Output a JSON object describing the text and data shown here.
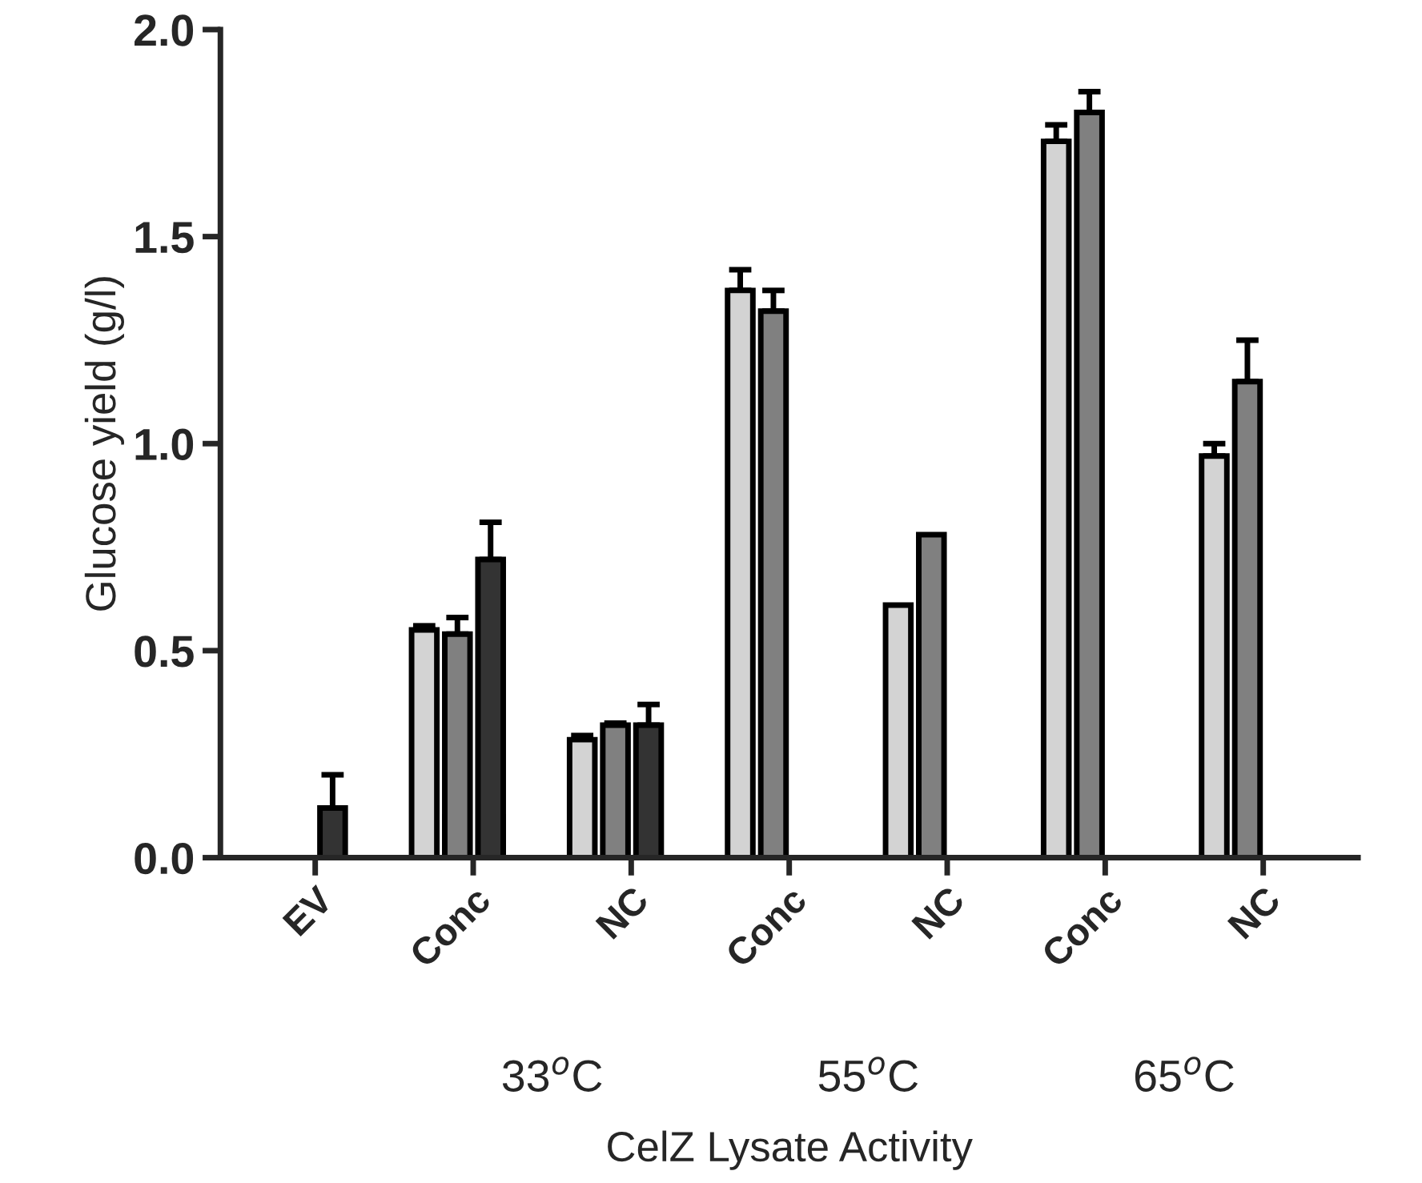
{
  "chart_data": {
    "type": "bar",
    "categories": [
      "EV",
      "Conc",
      "NC",
      "Conc",
      "NC",
      "Conc",
      "NC"
    ],
    "series": [
      {
        "color": "#d3d3d3",
        "values": [
          null,
          0.55,
          0.285,
          1.37,
          0.61,
          1.73,
          0.97
        ],
        "errors": [
          null,
          0.01,
          0.01,
          0.05,
          null,
          0.04,
          0.03
        ]
      },
      {
        "color": "#808080",
        "values": [
          null,
          0.54,
          0.32,
          1.32,
          0.78,
          1.8,
          1.15
        ],
        "errors": [
          null,
          0.04,
          0.005,
          0.05,
          null,
          0.05,
          0.1
        ]
      },
      {
        "color": "#333333",
        "values": [
          0.12,
          0.72,
          0.32,
          null,
          null,
          null,
          null
        ],
        "errors": [
          0.08,
          0.09,
          0.05,
          null,
          null,
          null,
          null
        ]
      }
    ],
    "xlabel": "CelZ Lysate Activity",
    "ylabel": "Glucose yield (g/l)",
    "annotations": [
      "33$^{o}$C",
      "55$^{o}$C",
      "65$^{o}$C"
    ],
    "ylim": [
      0,
      2.0
    ],
    "yticks": [
      {
        "value": 0,
        "label": "0.0"
      },
      {
        "value": 0.5,
        "label": "0.5"
      },
      {
        "value": 1.0,
        "label": "1.0"
      },
      {
        "value": 1.5,
        "label": "1.5"
      },
      {
        "value": 2.0,
        "label": "2.0"
      }
    ],
    "grid": false,
    "legend": false
  }
}
